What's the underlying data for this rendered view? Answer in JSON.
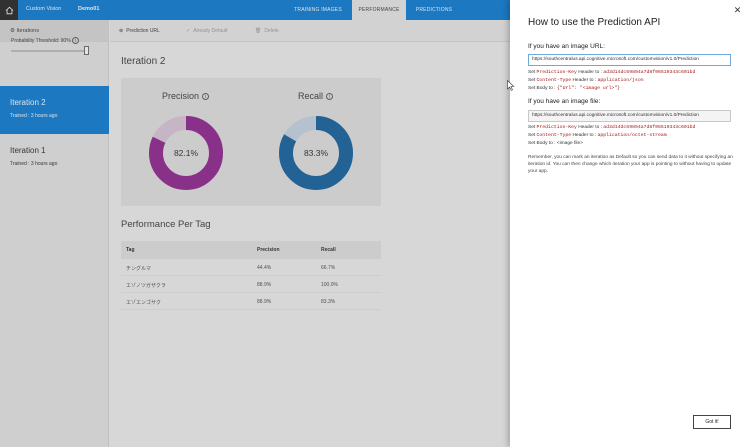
{
  "topbar": {
    "brand": "Custom Vision",
    "project": "Demo01",
    "tabs": [
      {
        "label": "TRAINING IMAGES"
      },
      {
        "label": "PERFORMANCE"
      },
      {
        "label": "PREDICTIONS"
      }
    ],
    "active_tab": "PERFORMANCE"
  },
  "sidebar": {
    "header": "Iterations",
    "threshold_label": "Probability Threshold: 90%",
    "threshold_value": 0.9,
    "iterations": [
      {
        "name": "Iteration 2",
        "trained": "Trained : 3 hours ago"
      },
      {
        "name": "Iteration 1",
        "trained": "Trained : 3 hours ago"
      }
    ]
  },
  "toolbar": {
    "prediction_url": "Prediction URL",
    "make_default": "Already Default",
    "delete": "Delete"
  },
  "main": {
    "title": "Iteration 2",
    "precision_label": "Precision",
    "precision_value": "82.1%",
    "precision_fraction": 0.821,
    "recall_label": "Recall",
    "recall_value": "83.3%",
    "recall_fraction": 0.833,
    "colors": {
      "precision": "#8c1a8c",
      "recall": "#0a5a9c"
    },
    "per_tag_title": "Performance Per Tag",
    "table": {
      "headers": [
        "Tag",
        "Precision",
        "Recall"
      ],
      "rows": [
        [
          "チングルマ",
          "44.4%",
          "66.7%"
        ],
        [
          "エゾノツガザクラ",
          "88.9%",
          "100.0%"
        ],
        [
          "エゾエンゴサク",
          "88.9%",
          "83.3%"
        ]
      ]
    }
  },
  "panel": {
    "title": "How to use the Prediction API",
    "url_section": "If you have an image URL:",
    "url_endpoint": "https://southcentralus.api.cognitive.microsoft.com/customvision/v1.0/Prediction",
    "url_key_prefix": "Set",
    "url_key_name": "Prediction-Key",
    "url_key_mid": "Header to :",
    "url_key_value": "ad3d14dc69894a7d8f06519343c601bd",
    "url_ct_prefix": "Set",
    "url_ct_name": "Content-Type",
    "url_ct_mid": "Header to :",
    "url_ct_value": "application/json",
    "url_body_prefix": "Set Body to :",
    "url_body_value": "{\"Url\": \"<image url>\"}",
    "file_section": "If you have an image file:",
    "file_endpoint": "https://southcentralus.api.cognitive.microsoft.com/customvision/v1.0/Prediction",
    "file_key_prefix": "Set",
    "file_key_name": "Prediction-Key",
    "file_key_mid": "Header to :",
    "file_key_value": "ad3d14dc69894a7d8f06519343c601bd",
    "file_ct_prefix": "Set",
    "file_ct_name": "Content-Type",
    "file_ct_mid": "Header to :",
    "file_ct_value": "application/octet-stream",
    "file_body": "Set Body to : <image file>",
    "note": "Remember, you can mark an iteration as Default so you can send data to it without specifying an iteration id. You can then change which iteration your app is pointing to without having to update your app.",
    "got_it": "Got it!"
  }
}
